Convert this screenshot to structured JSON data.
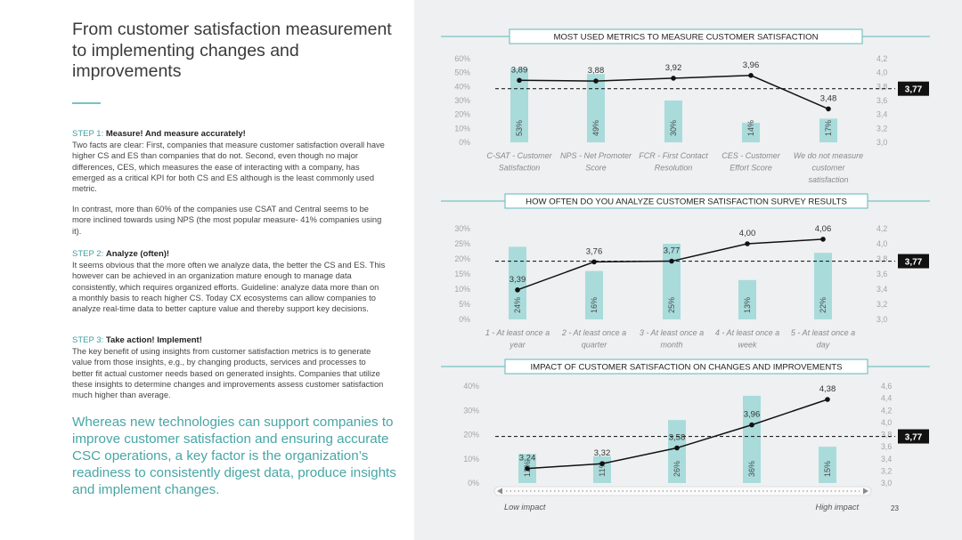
{
  "page": {
    "title": "From customer satisfaction measurement to implementing changes and improvements",
    "page_number": "23",
    "colors": {
      "accent": "#78c3c3",
      "bar": "#a9dbdb",
      "panel": "#eef0f1",
      "line": "#111111"
    }
  },
  "steps": [
    {
      "label": "STEP 1:",
      "heading": "Measure! And measure accurately!",
      "paragraphs": [
        "Two facts are clear: First, companies that measure customer satisfaction overall have higher CS and ES than companies that do not. Second, even though no major differences, CES, which measures the ease of interacting with a company, has emerged as a critical KPI for both CS and ES although is the least commonly used metric.",
        "In contrast, more than 60% of the companies use CSAT and Central seems to be more inclined towards using NPS (the most popular measure- 41% companies using it)."
      ]
    },
    {
      "label": "STEP 2:",
      "heading": "Analyze (often)!",
      "paragraphs": [
        "It seems obvious that the more often we analyze data, the better the CS and ES. This however can be achieved in an organization mature enough to manage data consistently, which requires organized efforts. Guideline: analyze data more than on a monthly basis to reach higher CS. Today CX ecosystems can allow companies to analyze real-time data to better capture value and thereby support key decisions."
      ]
    },
    {
      "label": "STEP 3:",
      "heading": "Take action! Implement!",
      "paragraphs": [
        "The key benefit of using insights from customer satisfaction metrics is to generate value from those insights, e.g., by changing products, services and processes to better fit actual customer needs based on generated insights. Companies that utilize these insights to determine changes and improvements assess customer satisfaction much higher than average."
      ]
    }
  ],
  "quote": "Whereas new technologies can support companies to improve customer satisfaction and ensuring accurate CSC operations, a key factor is the organization’s readiness to consistently digest data, produce insights and implement changes.",
  "chart_data": [
    {
      "type": "bar",
      "title": "MOST USED METRICS TO MEASURE CUSTOMER SATISFACTION",
      "categories": [
        [
          "C-SAT - Customer",
          "Satisfaction"
        ],
        [
          "NPS - Net Promoter",
          "Score"
        ],
        [
          "FCR - First Contact",
          "Resolution"
        ],
        [
          "CES - Customer",
          "Effort Score"
        ],
        [
          "We do not measure",
          "customer",
          "satisfaction"
        ]
      ],
      "bar_values": [
        53,
        49,
        30,
        14,
        17
      ],
      "bar_labels": [
        "53%",
        "49%",
        "30%",
        "14%",
        "17%"
      ],
      "line_values": [
        3.89,
        3.88,
        3.92,
        3.96,
        3.48
      ],
      "line_labels": [
        "3,89",
        "3,88",
        "3,92",
        "3,96",
        "3,48"
      ],
      "left_ticks": [
        "0%",
        "10%",
        "20%",
        "30%",
        "40%",
        "50%",
        "60%"
      ],
      "left_range": [
        0,
        60
      ],
      "right_ticks": [
        "3,0",
        "3,2",
        "3,4",
        "3,6",
        "3,8",
        "4,0",
        "4,2"
      ],
      "right_range": [
        3.0,
        4.2
      ],
      "reference": 3.77,
      "reference_label": "3,77"
    },
    {
      "type": "bar",
      "title": "HOW OFTEN DO YOU ANALYZE CUSTOMER SATISFACTION SURVEY RESULTS",
      "categories": [
        [
          "1 - At least once a",
          "year"
        ],
        [
          "2 - At least once a",
          "quarter"
        ],
        [
          "3 - At least once a",
          "month"
        ],
        [
          "4 - At least once a",
          "week"
        ],
        [
          "5 - At least once a",
          "day"
        ]
      ],
      "bar_values": [
        24,
        16,
        25,
        13,
        22
      ],
      "bar_labels": [
        "24%",
        "16%",
        "25%",
        "13%",
        "22%"
      ],
      "line_values": [
        3.39,
        3.76,
        3.77,
        4.0,
        4.06
      ],
      "line_labels": [
        "3,39",
        "3,76",
        "3,77",
        "4,00",
        "4,06"
      ],
      "left_ticks": [
        "0%",
        "5%",
        "10%",
        "15%",
        "20%",
        "25%",
        "30%"
      ],
      "left_range": [
        0,
        30
      ],
      "right_ticks": [
        "3,0",
        "3,2",
        "3,4",
        "3,6",
        "3,8",
        "4,0",
        "4,2"
      ],
      "right_range": [
        3.0,
        4.2
      ],
      "reference": 3.77,
      "reference_label": "3,77"
    },
    {
      "type": "bar",
      "title": "IMPACT OF CUSTOMER SATISFACTION ON CHANGES AND IMPROVEMENTS",
      "categories": [],
      "axis_low_label": "Low impact",
      "axis_high_label": "High impact",
      "bar_values": [
        12,
        11,
        26,
        36,
        15
      ],
      "bar_labels": [
        "12%",
        "11%",
        "26%",
        "36%",
        "15%"
      ],
      "line_values": [
        3.24,
        3.32,
        3.58,
        3.96,
        4.38
      ],
      "line_labels": [
        "3,24",
        "3,32",
        "3,58",
        "3,96",
        "4,38"
      ],
      "left_ticks": [
        "0%",
        "10%",
        "20%",
        "30%",
        "40%"
      ],
      "left_range": [
        0,
        40
      ],
      "right_ticks": [
        "3,0",
        "3,2",
        "3,4",
        "3,6",
        "3,8",
        "4,0",
        "4,2",
        "4,4",
        "4,6"
      ],
      "right_range": [
        3.0,
        4.6
      ],
      "reference": 3.77,
      "reference_label": "3,77"
    }
  ]
}
